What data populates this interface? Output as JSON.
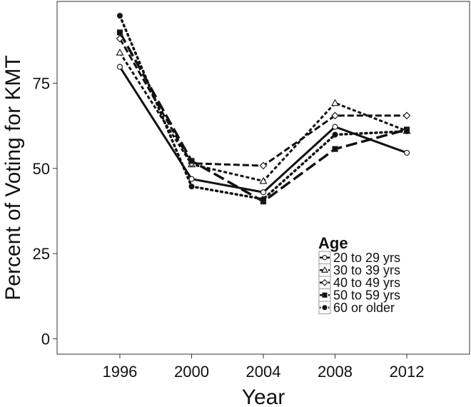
{
  "chart_data": {
    "type": "line",
    "title": "",
    "xlabel": "Year",
    "ylabel": "Percent of Voting for KMT",
    "x": [
      1996,
      2000,
      2004,
      2008,
      2012
    ],
    "xlim": [
      1992.5,
      2015.5
    ],
    "ylim": [
      -4.5,
      99
    ],
    "xticks": [
      1996,
      2000,
      2004,
      2008,
      2012
    ],
    "yticks": [
      0,
      25,
      50,
      75
    ],
    "grid": false,
    "legend": {
      "title": "Age",
      "placement": "bottom-right"
    },
    "series": [
      {
        "name": "20 to 29 yrs",
        "values": [
          79.8,
          46.9,
          43.0,
          62.2,
          54.6
        ],
        "line": "solid",
        "marker": "open-circle"
      },
      {
        "name": "30 to 39 yrs",
        "values": [
          84.0,
          51.2,
          46.3,
          69.2,
          61.0
        ],
        "line": "dashed-fine",
        "marker": "open-triangle"
      },
      {
        "name": "40 to 49 yrs",
        "values": [
          88.1,
          51.5,
          50.8,
          65.5,
          65.5
        ],
        "line": "dashed",
        "marker": "open-diamond"
      },
      {
        "name": "50 to 59 yrs",
        "values": [
          89.9,
          52.2,
          40.3,
          55.7,
          61.4
        ],
        "line": "long-dashed",
        "marker": "filled-square"
      },
      {
        "name": "60 or older",
        "values": [
          94.8,
          44.7,
          41.0,
          59.9,
          60.9
        ],
        "line": "dotted",
        "marker": "filled-circle"
      }
    ]
  }
}
